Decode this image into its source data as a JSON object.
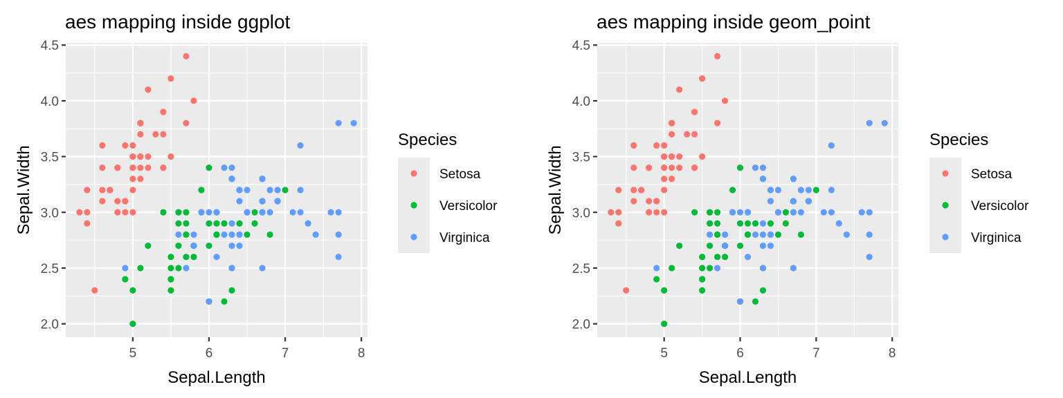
{
  "chart_data": [
    {
      "type": "scatter",
      "title": "aes mapping inside ggplot",
      "xlabel": "Sepal.Length",
      "ylabel": "Sepal.Width",
      "xlim": [
        4.12,
        8.08
      ],
      "ylim": [
        1.88,
        4.52
      ],
      "xticks": [
        5,
        6,
        7,
        8
      ],
      "yticks": [
        "2.0",
        "2.5",
        "3.0",
        "3.5",
        "4.0",
        "4.5"
      ],
      "grid": true,
      "legend": {
        "title": "Species",
        "position": "right"
      },
      "series_ref": "iris"
    },
    {
      "type": "scatter",
      "title": "aes mapping inside geom_point",
      "xlabel": "Sepal.Length",
      "ylabel": "Sepal.Width",
      "xlim": [
        4.12,
        8.08
      ],
      "ylim": [
        1.88,
        4.52
      ],
      "xticks": [
        5,
        6,
        7,
        8
      ],
      "yticks": [
        "2.0",
        "2.5",
        "3.0",
        "3.5",
        "4.0",
        "4.5"
      ],
      "grid": true,
      "legend": {
        "title": "Species",
        "position": "right"
      },
      "series_ref": "iris"
    }
  ],
  "series": [
    {
      "name": "Setosa",
      "color": "#F8766D",
      "x": [
        5.1,
        4.9,
        4.7,
        4.6,
        5.0,
        5.4,
        4.6,
        5.0,
        4.4,
        4.9,
        5.4,
        4.8,
        4.8,
        4.3,
        5.8,
        5.7,
        5.4,
        5.1,
        5.7,
        5.1,
        5.4,
        5.1,
        4.6,
        5.1,
        4.8,
        5.0,
        5.0,
        5.2,
        5.2,
        4.7,
        4.8,
        5.4,
        5.2,
        5.5,
        4.9,
        5.0,
        5.5,
        4.9,
        4.4,
        5.1,
        5.0,
        4.5,
        4.4,
        5.0,
        5.1,
        4.8,
        5.1,
        4.6,
        5.3,
        5.0
      ],
      "y": [
        3.5,
        3.0,
        3.2,
        3.1,
        3.6,
        3.9,
        3.4,
        3.4,
        2.9,
        3.1,
        3.7,
        3.4,
        3.0,
        3.0,
        4.0,
        4.4,
        3.9,
        3.5,
        3.8,
        3.8,
        3.4,
        3.7,
        3.6,
        3.3,
        3.4,
        3.0,
        3.4,
        3.5,
        3.4,
        3.2,
        3.1,
        3.4,
        4.1,
        4.2,
        3.1,
        3.2,
        3.5,
        3.6,
        3.0,
        3.4,
        3.5,
        2.3,
        3.2,
        3.5,
        3.8,
        3.0,
        3.8,
        3.2,
        3.7,
        3.3
      ]
    },
    {
      "name": "Versicolor",
      "color": "#00BA38",
      "x": [
        7.0,
        6.4,
        6.9,
        5.5,
        6.5,
        5.7,
        6.3,
        4.9,
        6.6,
        5.2,
        5.0,
        5.9,
        6.0,
        6.1,
        5.6,
        6.7,
        5.6,
        5.8,
        6.2,
        5.6,
        5.9,
        6.1,
        6.3,
        6.1,
        6.4,
        6.6,
        6.8,
        6.7,
        6.0,
        5.7,
        5.5,
        5.5,
        5.8,
        6.0,
        5.4,
        6.0,
        6.7,
        6.3,
        5.6,
        5.5,
        5.5,
        6.1,
        5.8,
        5.0,
        5.6,
        5.7,
        5.7,
        6.2,
        5.1,
        5.7
      ],
      "y": [
        3.2,
        3.2,
        3.1,
        2.3,
        2.8,
        2.8,
        3.3,
        2.4,
        2.9,
        2.7,
        2.0,
        3.0,
        2.2,
        2.9,
        2.9,
        3.1,
        3.0,
        2.7,
        2.2,
        2.5,
        3.2,
        2.8,
        2.5,
        2.8,
        2.9,
        3.0,
        2.8,
        3.0,
        2.9,
        2.6,
        2.4,
        2.4,
        2.7,
        2.7,
        3.0,
        3.4,
        3.1,
        2.3,
        3.0,
        2.5,
        2.6,
        3.0,
        2.6,
        2.3,
        2.7,
        3.0,
        2.9,
        2.9,
        2.5,
        2.8
      ]
    },
    {
      "name": "Virginica",
      "color": "#619CFF",
      "x": [
        6.3,
        5.8,
        7.1,
        6.3,
        6.5,
        7.6,
        4.9,
        7.3,
        6.7,
        7.2,
        6.5,
        6.4,
        6.8,
        5.7,
        5.8,
        6.4,
        6.5,
        7.7,
        7.7,
        6.0,
        6.9,
        5.6,
        7.7,
        6.3,
        6.7,
        7.2,
        6.2,
        6.1,
        6.4,
        7.2,
        7.4,
        7.9,
        6.4,
        6.3,
        6.1,
        7.7,
        6.3,
        6.4,
        6.0,
        6.9,
        6.7,
        6.9,
        5.8,
        6.8,
        6.7,
        6.7,
        6.3,
        6.5,
        6.2,
        5.9
      ],
      "y": [
        3.3,
        2.7,
        3.0,
        2.9,
        3.0,
        3.0,
        2.5,
        2.9,
        2.5,
        3.6,
        3.2,
        2.7,
        3.0,
        2.5,
        2.8,
        3.2,
        3.0,
        3.8,
        2.6,
        2.2,
        3.2,
        2.8,
        2.8,
        2.7,
        3.3,
        3.2,
        2.8,
        3.0,
        2.8,
        3.0,
        2.8,
        3.8,
        2.8,
        2.8,
        2.6,
        3.0,
        3.4,
        3.1,
        3.0,
        3.1,
        3.1,
        3.1,
        2.7,
        3.2,
        3.3,
        3.0,
        2.5,
        3.0,
        3.4,
        3.0
      ]
    }
  ]
}
